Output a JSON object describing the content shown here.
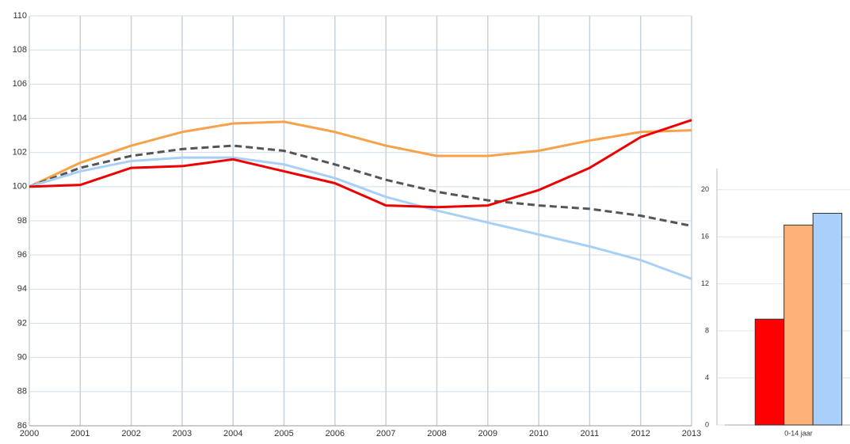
{
  "chart_data": [
    {
      "type": "line",
      "x": [
        2000,
        2001,
        2002,
        2003,
        2004,
        2005,
        2006,
        2007,
        2008,
        2009,
        2010,
        2011,
        2012,
        2013
      ],
      "xlim": [
        2000,
        2013
      ],
      "xticks": [
        2000,
        2001,
        2002,
        2003,
        2004,
        2005,
        2006,
        2007,
        2008,
        2009,
        2010,
        2011,
        2012,
        2013
      ],
      "ylim": [
        86,
        110
      ],
      "yticks": [
        86,
        88,
        90,
        92,
        94,
        96,
        98,
        100,
        102,
        104,
        106,
        108,
        110
      ],
      "grid": true,
      "series": [
        {
          "color": "#f7a24a",
          "values": [
            100,
            101.4,
            102.4,
            103.2,
            103.7,
            103.8,
            103.2,
            102.4,
            101.8,
            101.8,
            102.1,
            102.7,
            103.2,
            103.3
          ]
        },
        {
          "color": "#555555",
          "dashed": true,
          "values": [
            100,
            101.1,
            101.8,
            102.2,
            102.4,
            102.1,
            101.3,
            100.4,
            99.7,
            99.2,
            98.9,
            98.7,
            98.3,
            97.7
          ]
        },
        {
          "color": "#a8d0f5",
          "values": [
            100,
            100.9,
            101.5,
            101.7,
            101.7,
            101.3,
            100.5,
            99.4,
            98.6,
            97.9,
            97.2,
            96.5,
            95.7,
            94.6
          ]
        },
        {
          "color": "#ee0000",
          "values": [
            100,
            100.1,
            101.1,
            101.2,
            101.6,
            100.9,
            100.2,
            98.9,
            98.8,
            98.9,
            99.8,
            101.1,
            102.9,
            103.9
          ]
        }
      ]
    },
    {
      "type": "bar",
      "categories": [
        "0-14 jaar"
      ],
      "ylim": [
        0,
        21.8
      ],
      "yticks": [
        0,
        4,
        8,
        12,
        16,
        20
      ],
      "grid": true,
      "series": [
        {
          "color": "#ff0000",
          "values": [
            9
          ]
        },
        {
          "color": "#fdb27a",
          "values": [
            17
          ]
        },
        {
          "color": "#a8d0fa",
          "values": [
            18
          ]
        }
      ]
    }
  ]
}
